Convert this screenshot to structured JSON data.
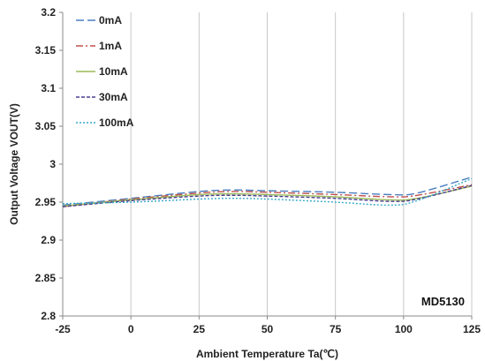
{
  "chart_data": {
    "type": "line",
    "title": "",
    "xlabel": "Ambient Temperature Ta(℃)",
    "ylabel": "Output Voltage VOUT(V)",
    "xlim": [
      -25,
      125
    ],
    "ylim": [
      2.8,
      3.2
    ],
    "x_ticks": [
      "-25",
      "0",
      "25",
      "50",
      "75",
      "100",
      "125"
    ],
    "y_ticks": [
      "2.8",
      "2.85",
      "2.9",
      "2.95",
      "3",
      "3.05",
      "3.1",
      "3.15",
      "3.2"
    ],
    "grid": "vertical",
    "legend_position": "top-left",
    "annotation": "MD5130",
    "series": [
      {
        "name": "0mA",
        "color": "#4a7fc1",
        "dash": "long-dash",
        "x": [
          -25,
          0,
          25,
          37.5,
          50,
          75,
          95,
          105,
          125
        ],
        "y": [
          2.946,
          2.955,
          2.964,
          2.966,
          2.965,
          2.963,
          2.96,
          2.962,
          2.983
        ]
      },
      {
        "name": "1mA",
        "color": "#c0504d",
        "dash": "dash-dot",
        "x": [
          -25,
          0,
          25,
          37.5,
          50,
          75,
          95,
          105,
          125
        ],
        "y": [
          2.944,
          2.954,
          2.962,
          2.964,
          2.963,
          2.96,
          2.957,
          2.959,
          2.973
        ]
      },
      {
        "name": "10mA",
        "color": "#9bbb59",
        "dash": "solid",
        "x": [
          -25,
          0,
          25,
          37.5,
          50,
          75,
          95,
          105,
          125
        ],
        "y": [
          2.945,
          2.953,
          2.96,
          2.961,
          2.96,
          2.957,
          2.953,
          2.955,
          2.971
        ]
      },
      {
        "name": "30mA",
        "color": "#4b3d8f",
        "dash": "short-dash",
        "x": [
          -25,
          0,
          25,
          37.5,
          50,
          75,
          95,
          105,
          125
        ],
        "y": [
          2.944,
          2.952,
          2.958,
          2.959,
          2.958,
          2.955,
          2.951,
          2.954,
          2.972
        ]
      },
      {
        "name": "100mA",
        "color": "#36a8c9",
        "dash": "dot",
        "x": [
          -25,
          0,
          25,
          37.5,
          50,
          75,
          95,
          105,
          125
        ],
        "y": [
          2.948,
          2.95,
          2.954,
          2.955,
          2.954,
          2.95,
          2.946,
          2.952,
          2.981
        ]
      }
    ]
  }
}
